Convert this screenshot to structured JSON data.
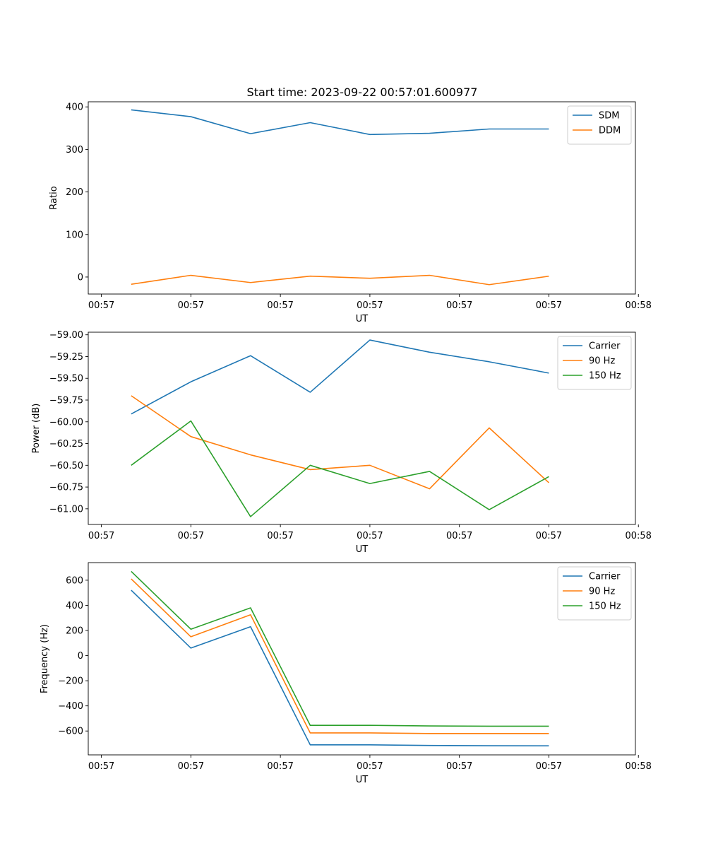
{
  "title": "Start time: 2023-09-22 00:57:01.600977",
  "chart_data": [
    {
      "type": "line",
      "xlabel": "UT",
      "ylabel": "Ratio",
      "x": [
        0,
        1,
        2,
        3,
        4,
        5,
        6,
        7
      ],
      "xlim": [
        -0.72,
        8.45
      ],
      "x_ticks": [
        -0.5,
        1.0,
        2.5,
        4.0,
        5.5,
        7.0,
        8.5
      ],
      "x_tick_labels": [
        "00:57",
        "00:57",
        "00:57",
        "00:57",
        "00:57",
        "00:57",
        "00:58"
      ],
      "ylim": [
        -40,
        412
      ],
      "y_ticks": [
        0,
        100,
        200,
        300,
        400
      ],
      "y_tick_labels": [
        "0",
        "100",
        "200",
        "300",
        "400"
      ],
      "legend_position": "top-right",
      "series": [
        {
          "name": "SDM",
          "color": "#1f77b4",
          "values": [
            393,
            377,
            337,
            363,
            335,
            338,
            348,
            348
          ]
        },
        {
          "name": "DDM",
          "color": "#ff7f0e",
          "values": [
            -17,
            4,
            -13,
            2,
            -3,
            4,
            -18,
            2
          ]
        }
      ]
    },
    {
      "type": "line",
      "xlabel": "UT",
      "ylabel": "Power (dB)",
      "x": [
        0,
        1,
        2,
        3,
        4,
        5,
        6,
        7
      ],
      "xlim": [
        -0.72,
        8.45
      ],
      "x_ticks": [
        -0.5,
        1.0,
        2.5,
        4.0,
        5.5,
        7.0,
        8.5
      ],
      "x_tick_labels": [
        "00:57",
        "00:57",
        "00:57",
        "00:57",
        "00:57",
        "00:57",
        "00:58"
      ],
      "ylim": [
        -61.18,
        -58.97
      ],
      "y_ticks": [
        -59.0,
        -59.25,
        -59.5,
        -59.75,
        -60.0,
        -60.25,
        -60.5,
        -60.75,
        -61.0
      ],
      "y_tick_labels": [
        "−59.00",
        "−59.25",
        "−59.50",
        "−59.75",
        "−60.00",
        "−60.25",
        "−60.50",
        "−60.75",
        "−61.00"
      ],
      "legend_position": "top-right",
      "series": [
        {
          "name": "Carrier",
          "color": "#1f77b4",
          "values": [
            -59.91,
            -59.54,
            -59.24,
            -59.66,
            -59.06,
            -59.2,
            -59.31,
            -59.44
          ]
        },
        {
          "name": "90 Hz",
          "color": "#ff7f0e",
          "values": [
            -59.7,
            -60.17,
            -60.38,
            -60.55,
            -60.5,
            -60.77,
            -60.07,
            -60.7
          ]
        },
        {
          "name": "150 Hz",
          "color": "#2ca02c",
          "values": [
            -60.5,
            -59.99,
            -61.09,
            -60.5,
            -60.71,
            -60.57,
            -61.01,
            -60.63
          ]
        }
      ]
    },
    {
      "type": "line",
      "xlabel": "UT",
      "ylabel": "Frequency (Hz)",
      "x": [
        0,
        1,
        2,
        3,
        4,
        5,
        6,
        7
      ],
      "xlim": [
        -0.72,
        8.45
      ],
      "x_ticks": [
        -0.5,
        1.0,
        2.5,
        4.0,
        5.5,
        7.0,
        8.5
      ],
      "x_tick_labels": [
        "00:57",
        "00:57",
        "00:57",
        "00:57",
        "00:57",
        "00:57",
        "00:58"
      ],
      "ylim": [
        -790,
        740
      ],
      "y_ticks": [
        -600,
        -400,
        -200,
        0,
        200,
        400,
        600
      ],
      "y_tick_labels": [
        "−600",
        "−400",
        "−200",
        "0",
        "200",
        "400",
        "600"
      ],
      "legend_position": "top-right",
      "series": [
        {
          "name": "Carrier",
          "color": "#1f77b4",
          "values": [
            520,
            60,
            230,
            -710,
            -710,
            -715,
            -717,
            -718
          ]
        },
        {
          "name": "90 Hz",
          "color": "#ff7f0e",
          "values": [
            610,
            150,
            325,
            -615,
            -615,
            -620,
            -620,
            -620
          ]
        },
        {
          "name": "150 Hz",
          "color": "#2ca02c",
          "values": [
            670,
            210,
            380,
            -555,
            -555,
            -560,
            -562,
            -562
          ]
        }
      ]
    }
  ]
}
